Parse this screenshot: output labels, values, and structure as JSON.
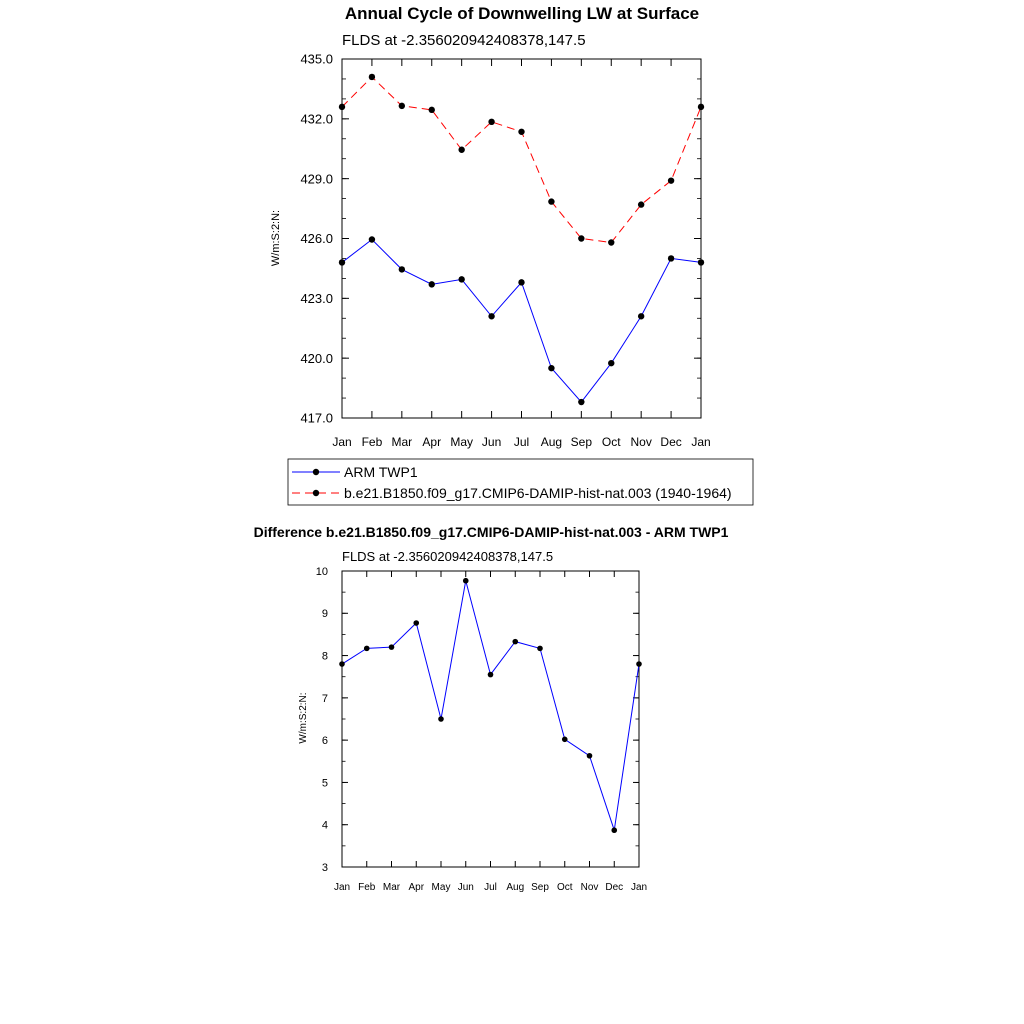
{
  "colors": {
    "obs": "#0000ff",
    "model": "#ff0000",
    "diff": "#0000ff",
    "marker": "#000000"
  },
  "chart_data": [
    {
      "type": "line",
      "title": "Annual Cycle of Downwelling LW at Surface",
      "subtitle": "FLDS at -2.356020942408378,147.5",
      "ylabel": "W/m:S:2:N:",
      "xlabel": "",
      "categories": [
        "Jan",
        "Feb",
        "Mar",
        "Apr",
        "May",
        "Jun",
        "Jul",
        "Aug",
        "Sep",
        "Oct",
        "Nov",
        "Dec",
        "Jan"
      ],
      "ylim": [
        417.0,
        435.0
      ],
      "yticks": [
        417.0,
        420.0,
        423.0,
        426.0,
        429.0,
        432.0,
        435.0
      ],
      "ytick_labels": [
        "417.0",
        "420.0",
        "423.0",
        "426.0",
        "429.0",
        "432.0",
        "435.0"
      ],
      "legend_position": "below",
      "series": [
        {
          "name": "ARM TWP1",
          "style": "solid",
          "color": "#0000ff",
          "values": [
            424.8,
            425.95,
            424.45,
            423.7,
            423.95,
            422.1,
            423.8,
            419.5,
            417.8,
            419.75,
            422.1,
            425.0,
            424.8
          ]
        },
        {
          "name": "b.e21.B1850.f09_g17.CMIP6-DAMIP-hist-nat.003 (1940-1964)",
          "style": "dashed",
          "color": "#ff0000",
          "values": [
            432.6,
            434.1,
            432.65,
            432.45,
            430.45,
            431.85,
            431.35,
            427.85,
            426.0,
            425.8,
            427.7,
            428.9,
            432.6
          ]
        }
      ]
    },
    {
      "type": "line",
      "title": "Difference b.e21.B1850.f09_g17.CMIP6-DAMIP-hist-nat.003 - ARM TWP1",
      "subtitle": "FLDS at -2.356020942408378,147.5",
      "ylabel": "W/m:S:2:N:",
      "xlabel": "",
      "categories": [
        "Jan",
        "Feb",
        "Mar",
        "Apr",
        "May",
        "Jun",
        "Jul",
        "Aug",
        "Sep",
        "Oct",
        "Nov",
        "Dec",
        "Jan"
      ],
      "ylim": [
        3,
        10
      ],
      "yticks": [
        3,
        4,
        5,
        6,
        7,
        8,
        9,
        10
      ],
      "ytick_labels": [
        "3",
        "4",
        "5",
        "6",
        "7",
        "8",
        "9",
        "10"
      ],
      "series": [
        {
          "name": "Difference",
          "style": "solid",
          "color": "#0000ff",
          "values": [
            7.8,
            8.17,
            8.2,
            8.77,
            6.5,
            9.77,
            7.55,
            8.33,
            8.17,
            6.02,
            5.63,
            3.87,
            7.8
          ]
        }
      ]
    }
  ]
}
